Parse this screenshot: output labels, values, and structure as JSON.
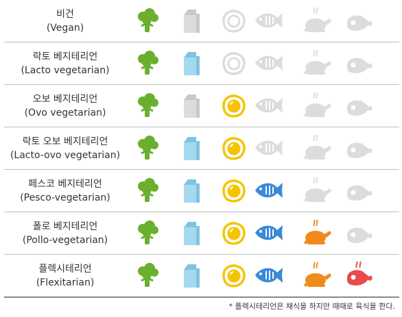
{
  "colors": {
    "broccoli": "#6ab02e",
    "milk": "#a5d9f0",
    "egg_yolk": "#f5c400",
    "fish": "#3a8ad8",
    "chicken": "#f08a1c",
    "meat": "#e84a4a",
    "inactive": "#dcdcdc"
  },
  "columns": [
    "broccoli-icon",
    "milk-carton-icon",
    "fried-egg-icon",
    "fish-icon",
    "roast-chicken-icon",
    "meat-icon"
  ],
  "rows": [
    {
      "name_ko": "비건",
      "name_en": "(Vegan)",
      "allowed": [
        true,
        false,
        false,
        false,
        false,
        false
      ]
    },
    {
      "name_ko": "락토 베지테리언",
      "name_en": "(Lacto vegetarian)",
      "allowed": [
        true,
        true,
        false,
        false,
        false,
        false
      ]
    },
    {
      "name_ko": "오보 베지테리언",
      "name_en": "(Ovo vegetarian)",
      "allowed": [
        true,
        false,
        true,
        false,
        false,
        false
      ]
    },
    {
      "name_ko": "락토 오보 베지테리언",
      "name_en": "(Lacto-ovo vegetarian)",
      "allowed": [
        true,
        true,
        true,
        false,
        false,
        false
      ]
    },
    {
      "name_ko": "페스코 베지테리언",
      "name_en": "(Pesco-vegetarian)",
      "allowed": [
        true,
        true,
        true,
        true,
        false,
        false
      ]
    },
    {
      "name_ko": "폴로 베지테리언",
      "name_en": "(Pollo-vegetarian)",
      "allowed": [
        true,
        true,
        true,
        true,
        true,
        false
      ]
    },
    {
      "name_ko": "플렉시테리언",
      "name_en": "(Flexitarian)",
      "allowed": [
        true,
        true,
        true,
        true,
        true,
        true
      ]
    }
  ],
  "footnote": "* 플렉시테리언은 채식을 하지만 때때로 육식을 한다."
}
